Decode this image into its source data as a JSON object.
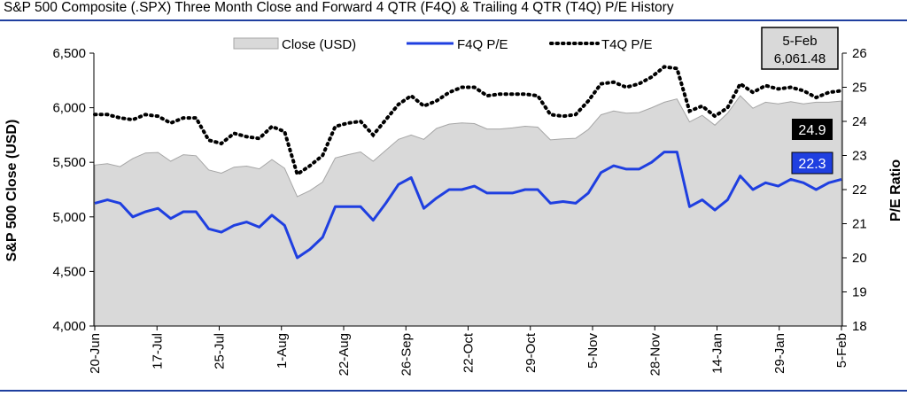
{
  "title": "S&P 500 Composite (.SPX) Three Month Close and Forward 4 QTR (F4Q) & Trailing 4 QTR (T4Q) P/E History",
  "colors": {
    "rule": "#1f3f9f",
    "area_fill": "#d9d9d9",
    "area_stroke": "#a6a6a6",
    "f4q": "#1f3fe0",
    "t4q": "#000000"
  },
  "chart_data": {
    "type": "line",
    "x_tick_labels": [
      "20-Jun",
      "17-Jul",
      "25-Jul",
      "1-Aug",
      "22-Aug",
      "26-Sep",
      "22-Oct",
      "29-Oct",
      "5-Nov",
      "28-Nov",
      "14-Jan",
      "29-Jan",
      "5-Feb"
    ],
    "y_left": {
      "label": "S&P 500 Close (USD)",
      "ticks": [
        "4,000",
        "4,500",
        "5,000",
        "5,500",
        "6,000",
        "6,500"
      ],
      "range": [
        4000,
        6500
      ]
    },
    "y_right": {
      "label": "P/E Ratio",
      "ticks": [
        "18",
        "19",
        "20",
        "21",
        "22",
        "23",
        "24",
        "25",
        "26"
      ],
      "range": [
        18,
        26
      ]
    },
    "series": [
      {
        "name": "Close (USD)",
        "kind": "area",
        "values": [
          5475,
          5487,
          5460,
          5535,
          5585,
          5590,
          5510,
          5570,
          5560,
          5430,
          5400,
          5455,
          5465,
          5440,
          5525,
          5446,
          5186,
          5240,
          5319,
          5540,
          5570,
          5595,
          5510,
          5610,
          5710,
          5750,
          5710,
          5810,
          5850,
          5860,
          5855,
          5805,
          5805,
          5815,
          5830,
          5822,
          5705,
          5715,
          5720,
          5800,
          5935,
          5970,
          5950,
          5955,
          6000,
          6050,
          6080,
          5870,
          5930,
          5840,
          5950,
          6110,
          5995,
          6050,
          6035,
          6055,
          6035,
          6050,
          6050,
          6061
        ]
      },
      {
        "name": "F4Q P/E",
        "kind": "line",
        "values": [
          21.6,
          21.7,
          21.6,
          21.2,
          21.35,
          21.45,
          21.15,
          21.35,
          21.35,
          20.85,
          20.75,
          20.95,
          21.05,
          20.9,
          21.25,
          20.95,
          20.0,
          20.25,
          20.6,
          21.5,
          21.5,
          21.5,
          21.1,
          21.6,
          22.15,
          22.35,
          21.45,
          21.75,
          22.0,
          22.0,
          22.1,
          21.9,
          21.9,
          21.9,
          22.0,
          22.0,
          21.6,
          21.65,
          21.6,
          21.9,
          22.5,
          22.7,
          22.6,
          22.6,
          22.8,
          23.1,
          23.1,
          21.5,
          21.7,
          21.4,
          21.7,
          22.4,
          22.0,
          22.2,
          22.1,
          22.3,
          22.2,
          22.0,
          22.2,
          22.3
        ]
      },
      {
        "name": "T4Q P/E",
        "kind": "line",
        "values": [
          24.2,
          24.2,
          24.1,
          24.05,
          24.2,
          24.15,
          23.95,
          24.1,
          24.1,
          23.45,
          23.35,
          23.65,
          23.55,
          23.5,
          23.85,
          23.7,
          22.45,
          22.7,
          23.0,
          23.85,
          23.95,
          24.0,
          23.6,
          24.05,
          24.5,
          24.75,
          24.45,
          24.6,
          24.85,
          25.0,
          25.0,
          24.75,
          24.8,
          24.8,
          24.8,
          24.75,
          24.2,
          24.15,
          24.2,
          24.6,
          25.1,
          25.15,
          25.0,
          25.1,
          25.3,
          25.6,
          25.55,
          24.3,
          24.45,
          24.15,
          24.4,
          25.1,
          24.85,
          25.05,
          24.95,
          25.0,
          24.9,
          24.7,
          24.85,
          24.9
        ]
      }
    ],
    "last_value_labels": {
      "t4q": "24.9",
      "f4q": "22.3"
    },
    "latest_box": {
      "date": "5-Feb",
      "value": "6,061.48"
    },
    "legend_position": "top",
    "grid": false
  }
}
